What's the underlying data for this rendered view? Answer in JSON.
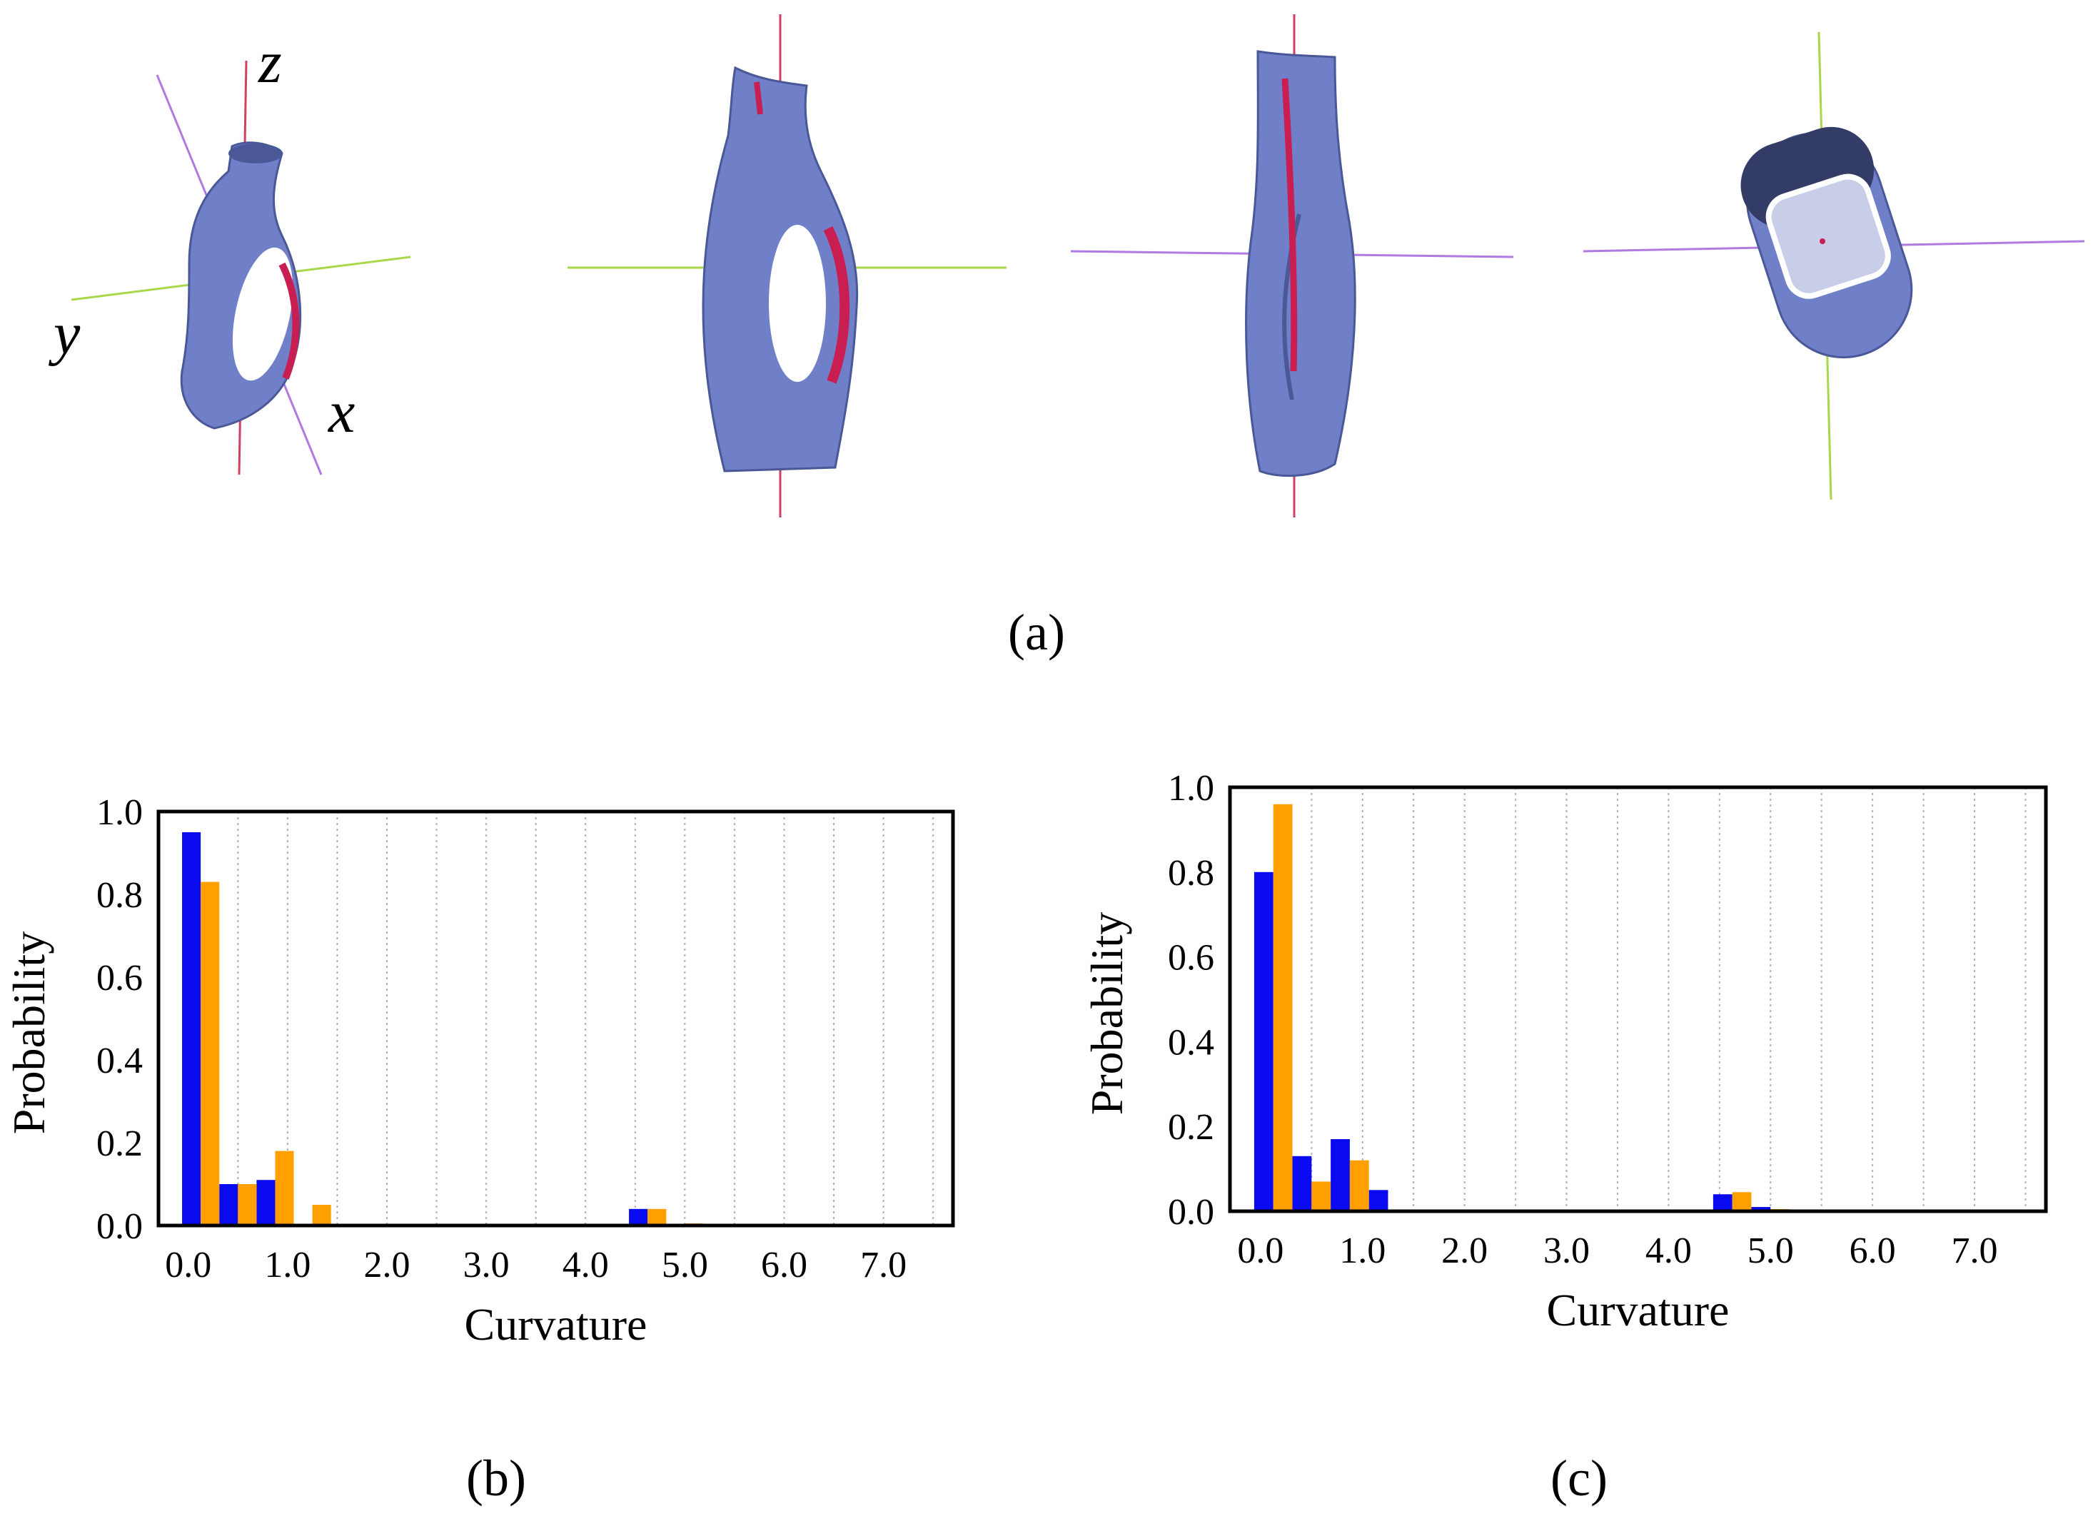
{
  "panels": {
    "a_label": "(a)",
    "b_label": "(b)",
    "c_label": "(c)"
  },
  "render_axes": {
    "x": "x",
    "y": "y",
    "z": "z"
  },
  "colors": {
    "series_1": "#0a0af0",
    "series_2": "#ffa000",
    "mesh_body": "#6f7fc8",
    "mesh_shade": "#4a5898",
    "mesh_highlight": "#c81e52",
    "axis_green": "#a8d84a",
    "axis_purple": "#b07ae0",
    "axis_red": "#d04060"
  },
  "chart_data": [
    {
      "type": "bar",
      "panel": "(b)",
      "xlabel": "Curvature",
      "ylabel": "Probability",
      "xlim": [
        -0.3,
        7.7
      ],
      "ylim": [
        0,
        1.0
      ],
      "xticks": [
        "0.0",
        "1.0",
        "2.0",
        "3.0",
        "4.0",
        "5.0",
        "6.0",
        "7.0"
      ],
      "yticks": [
        "0.0",
        "0.2",
        "0.4",
        "0.6",
        "0.8",
        "1.0"
      ],
      "grid": "vertical dotted",
      "x": [
        0.125,
        0.5,
        0.875,
        1.25,
        4.625,
        5.0
      ],
      "series": [
        {
          "values": [
            0.95,
            0.1,
            0.11,
            0.0,
            0.04,
            0.0
          ]
        },
        {
          "values": [
            0.83,
            0.1,
            0.18,
            0.05,
            0.04,
            0.005
          ]
        }
      ]
    },
    {
      "type": "bar",
      "panel": "(c)",
      "xlabel": "Curvature",
      "ylabel": "Probability",
      "xlim": [
        -0.3,
        7.7
      ],
      "ylim": [
        0,
        1.0
      ],
      "xticks": [
        "0.0",
        "1.0",
        "2.0",
        "3.0",
        "4.0",
        "5.0",
        "6.0",
        "7.0"
      ],
      "yticks": [
        "0.0",
        "0.2",
        "0.4",
        "0.6",
        "0.8",
        "1.0"
      ],
      "grid": "vertical dotted",
      "x": [
        0.125,
        0.5,
        0.875,
        1.25,
        4.625,
        5.0
      ],
      "series": [
        {
          "values": [
            0.8,
            0.13,
            0.17,
            0.05,
            0.04,
            0.01
          ]
        },
        {
          "values": [
            0.96,
            0.07,
            0.12,
            0.0,
            0.045,
            0.005
          ]
        }
      ]
    }
  ]
}
